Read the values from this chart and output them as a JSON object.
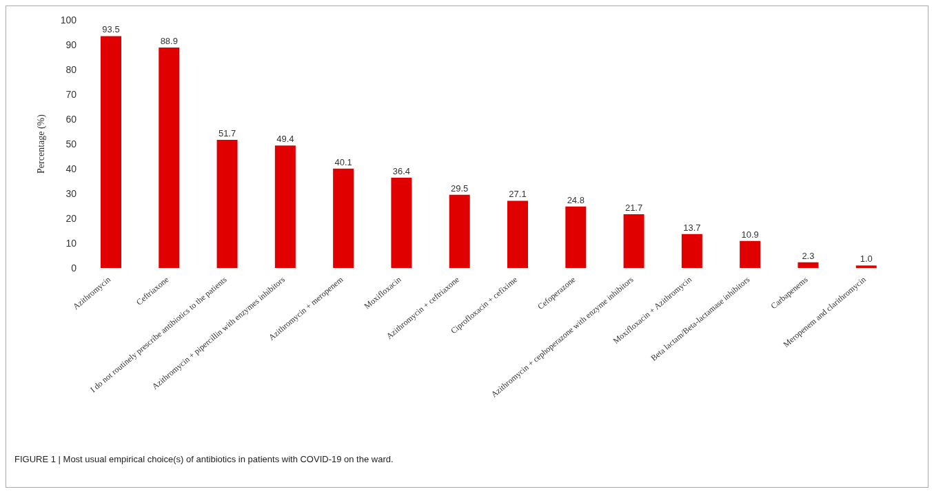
{
  "chart_data": {
    "type": "bar",
    "ylabel": "Percentage (%)",
    "categories": [
      "Azithromycin",
      "Ceftriaxone",
      "I do not routinely prescribe antibiotics to the patients",
      "Azithromycin + pipercillin with enzymes inhibitors",
      "Azithromycin + meropenem",
      "Moxifloxacin",
      "Azithromycin + ceftriaxone",
      "Ciprofloxacin + cefixime",
      "Cefoperazone",
      "Azithromycin + cephoperazone with enzyme inhibitors",
      "Moxifloxacin + Azithromycin",
      "Beta lactam/Beta-lactamase inhibitors",
      "Carbapenems",
      "Meropenem and clarithromycin"
    ],
    "values": [
      93.5,
      88.9,
      51.7,
      49.4,
      40.1,
      36.4,
      29.5,
      27.1,
      24.8,
      21.7,
      13.7,
      10.9,
      2.3,
      1.0
    ],
    "value_labels": [
      "93.5",
      "88.9",
      "51.7",
      "49.4",
      "40.1",
      "36.4",
      "29.5",
      "27.1",
      "24.8",
      "21.7",
      "13.7",
      "10.9",
      "2.3",
      "1.0"
    ],
    "color": "#e00000",
    "ylim": [
      0,
      100
    ],
    "yticks": [
      0,
      10,
      20,
      30,
      40,
      50,
      60,
      70,
      80,
      90,
      100
    ],
    "grid": false,
    "legend": false,
    "annotations": [
      "FIGURE 1 | Most usual empirical choice(s) of antibiotics in patients with COVID-19 on the ward."
    ]
  }
}
